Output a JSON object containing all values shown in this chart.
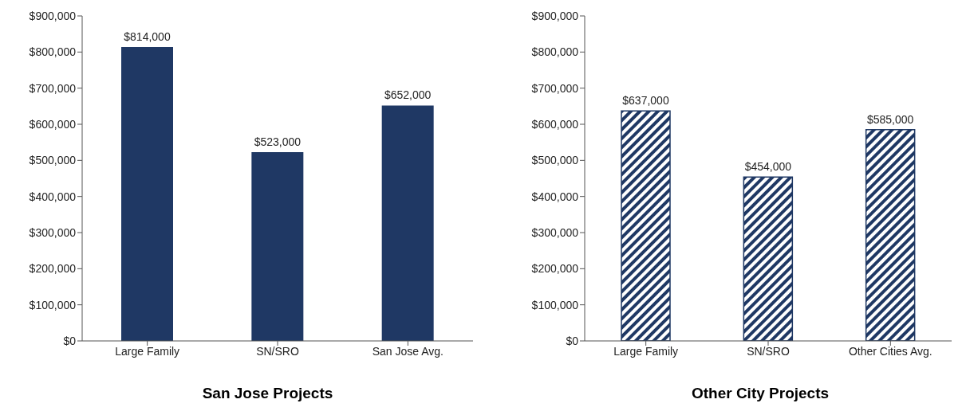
{
  "chart_data": [
    {
      "type": "bar",
      "title": "San Jose Projects",
      "categories": [
        "Large Family",
        "SN/SRO",
        "San Jose Avg."
      ],
      "values": [
        814000,
        523000,
        652000
      ],
      "color": "#1f3864",
      "value_labels": [
        "$814,000",
        "$523,000",
        "$652,000"
      ],
      "ylim": [
        0,
        900000
      ],
      "yticks": [
        {
          "value": 0,
          "label": "$0"
        },
        {
          "value": 100000,
          "label": "$100,000"
        },
        {
          "value": 200000,
          "label": "$200,000"
        },
        {
          "value": 300000,
          "label": "$300,000"
        },
        {
          "value": 400000,
          "label": "$400,000"
        },
        {
          "value": 500000,
          "label": "$500,000"
        },
        {
          "value": 600000,
          "label": "$600,000"
        },
        {
          "value": 700000,
          "label": "$700,000"
        },
        {
          "value": 800000,
          "label": "$800,000"
        },
        {
          "value": 900000,
          "label": "$900,000"
        }
      ],
      "grid": false,
      "legend": false
    },
    {
      "type": "bar",
      "title": "Other City Projects",
      "categories": [
        "Large Family",
        "SN/SRO",
        "Other Cities Avg."
      ],
      "values": [
        637000,
        454000,
        585000
      ],
      "color": "#1f3864",
      "value_labels": [
        "$637,000",
        "$454,000",
        "$585,000"
      ],
      "ylim": [
        0,
        900000
      ],
      "yticks": [
        {
          "value": 0,
          "label": "$0"
        },
        {
          "value": 100000,
          "label": "$100,000"
        },
        {
          "value": 200000,
          "label": "$200,000"
        },
        {
          "value": 300000,
          "label": "$300,000"
        },
        {
          "value": 400000,
          "label": "$400,000"
        },
        {
          "value": 500000,
          "label": "$500,000"
        },
        {
          "value": 600000,
          "label": "$600,000"
        },
        {
          "value": 700000,
          "label": "$700,000"
        },
        {
          "value": 800000,
          "label": "$800,000"
        },
        {
          "value": 900000,
          "label": "$900,000"
        }
      ],
      "grid": false,
      "legend": false
    }
  ]
}
